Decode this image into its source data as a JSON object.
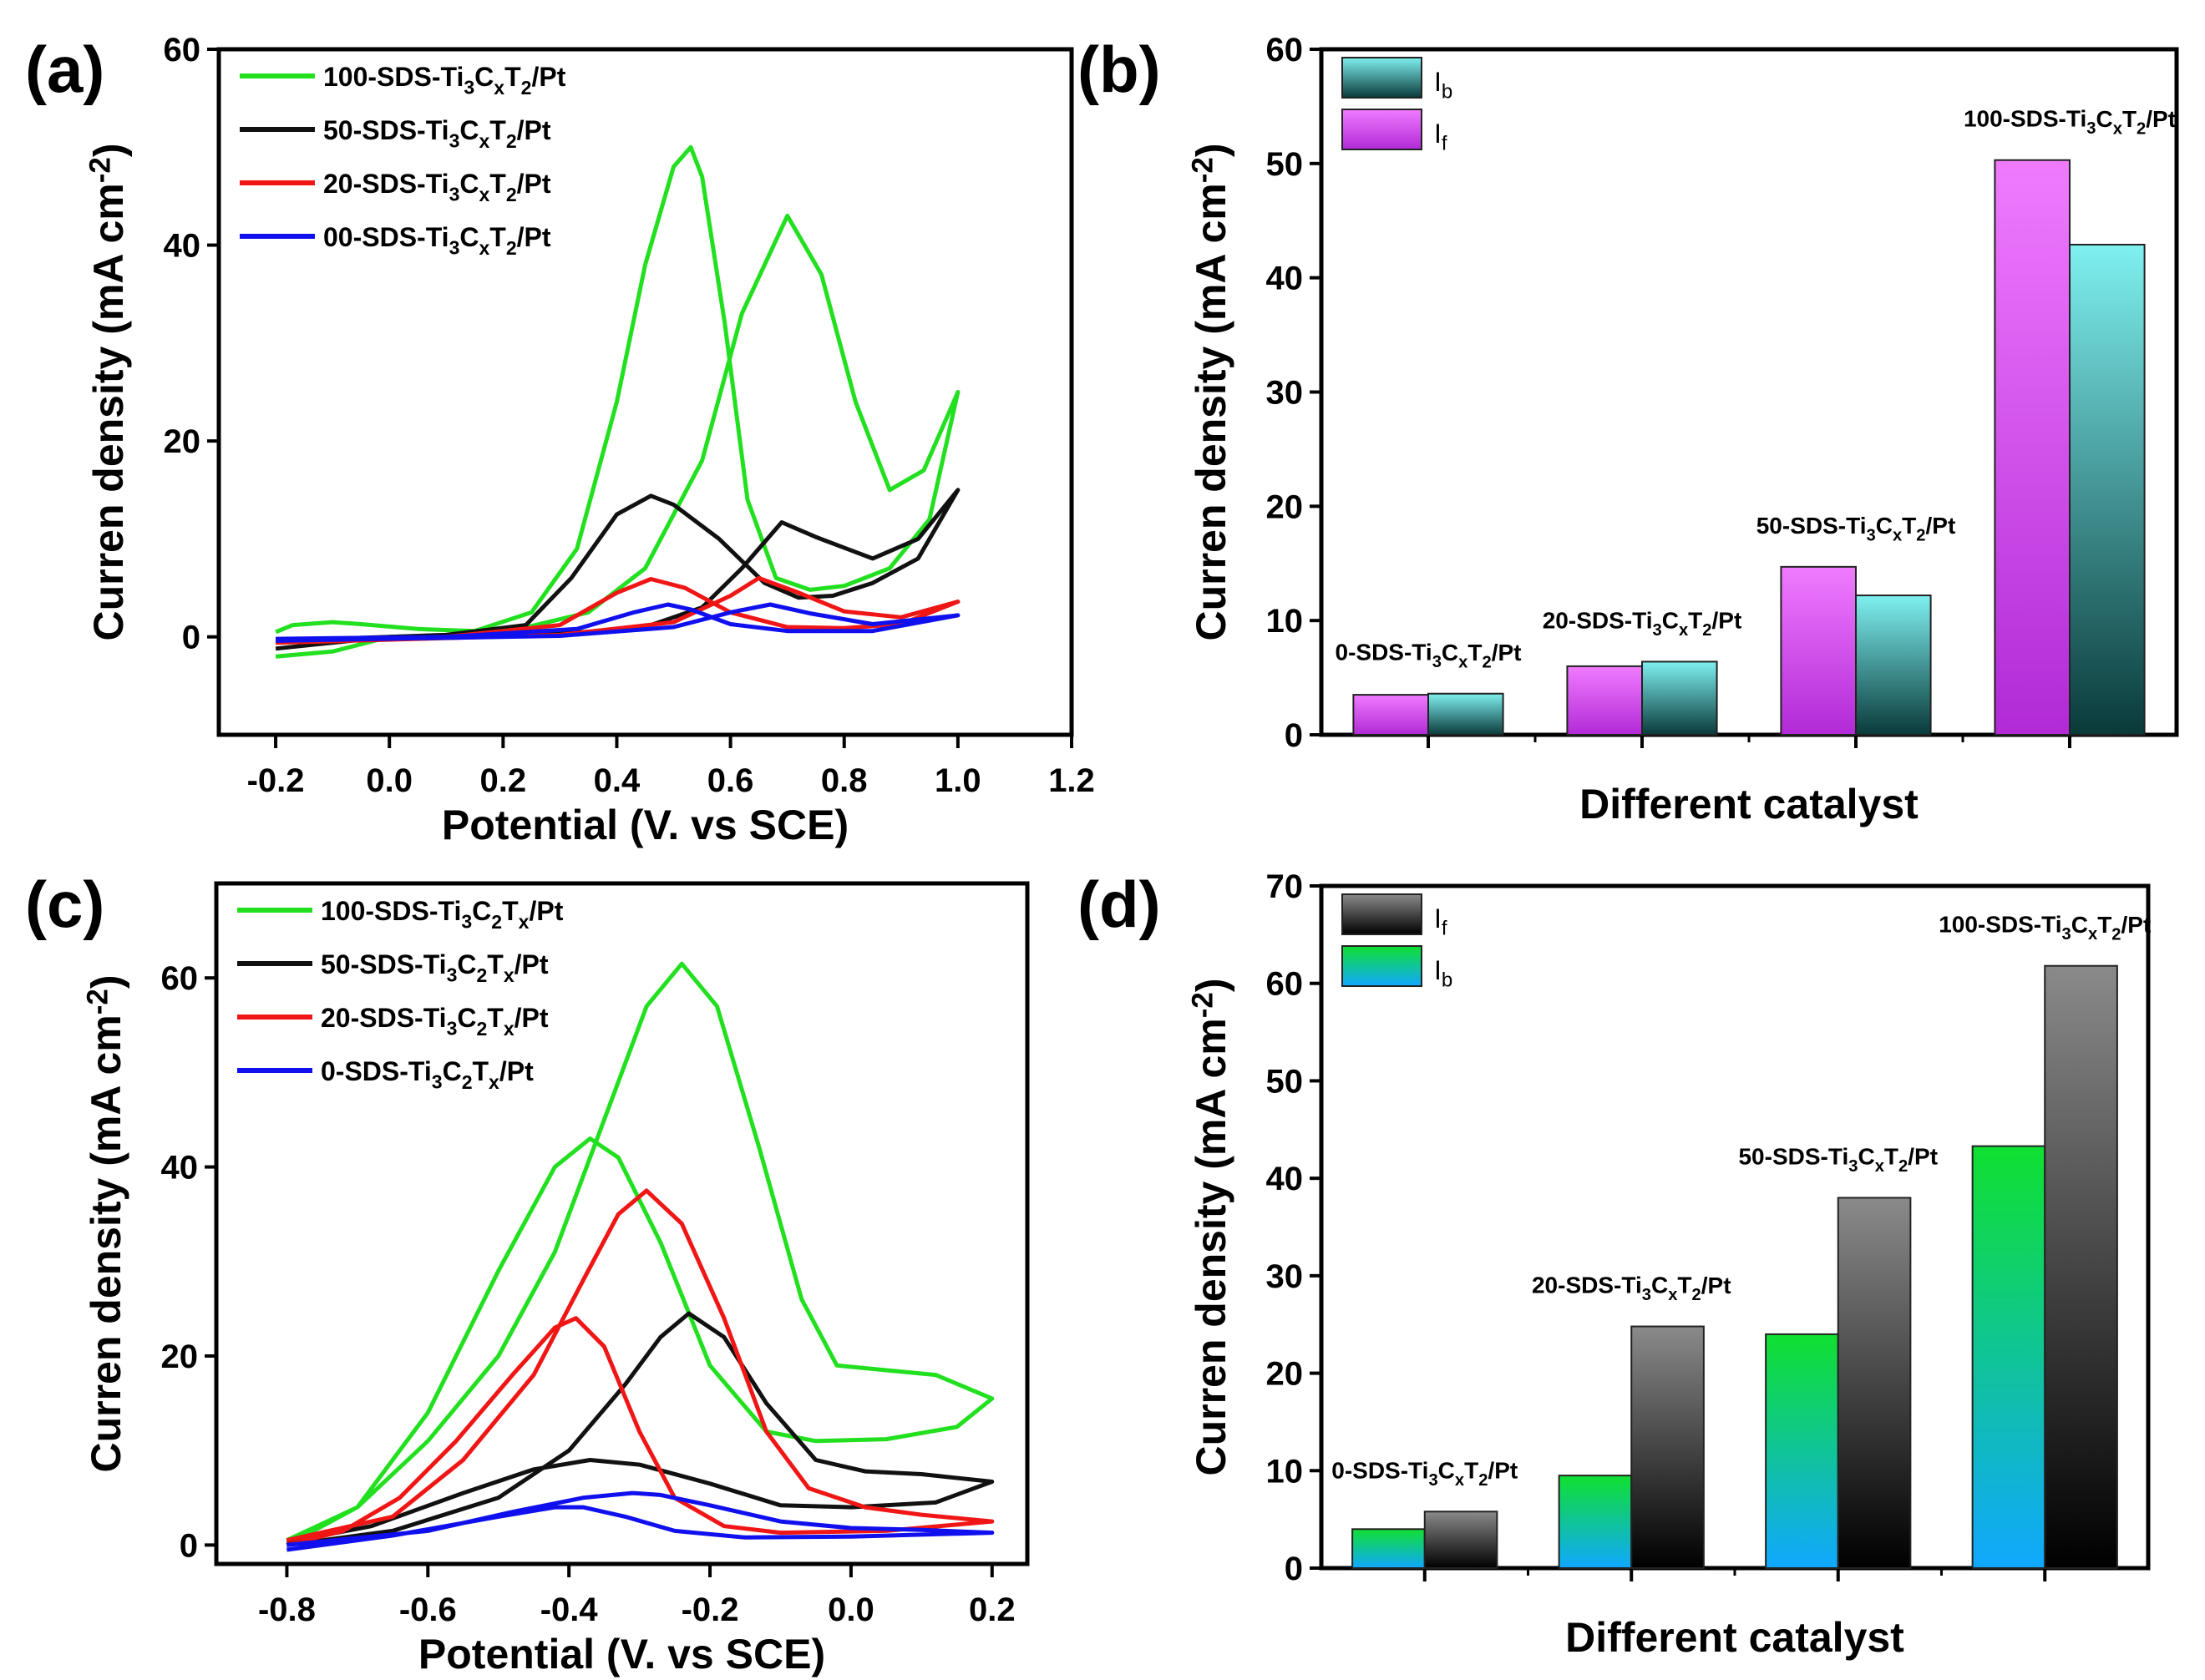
{
  "chart_data": [
    {
      "panel": "(a)",
      "type": "line",
      "xlabel": "Potential (V. vs SCE)",
      "ylabel": "Curren density (mA cm-2)",
      "xlim": [
        -0.3,
        1.2
      ],
      "ylim": [
        -10,
        60
      ],
      "xticks": [
        "-0.2",
        "0.0",
        "0.2",
        "0.4",
        "0.6",
        "0.8",
        "1.0",
        "1.2"
      ],
      "xtick_values": [
        -0.2,
        0,
        0.2,
        0.4,
        0.6,
        0.8,
        1.0,
        1.2
      ],
      "yticks": [
        "0",
        "20",
        "40",
        "60"
      ],
      "ytick_values": [
        0,
        20,
        40,
        60
      ],
      "legend_position": "top-left",
      "series": [
        {
          "name": "100-SDS-Ti3CxT2/Pt",
          "color": "#22e01f",
          "points": [
            [
              -0.2,
              -2
            ],
            [
              -0.1,
              -1.5
            ],
            [
              0,
              0
            ],
            [
              0.2,
              0.4
            ],
            [
              0.35,
              2.5
            ],
            [
              0.45,
              7
            ],
            [
              0.55,
              18
            ],
            [
              0.62,
              33
            ],
            [
              0.7,
              43
            ],
            [
              0.76,
              37
            ],
            [
              0.82,
              24
            ],
            [
              0.88,
              15
            ],
            [
              0.94,
              17
            ],
            [
              1.0,
              25
            ],
            [
              0.95,
              12
            ],
            [
              0.88,
              7
            ],
            [
              0.8,
              5.2
            ],
            [
              0.74,
              4.8
            ],
            [
              0.68,
              6
            ],
            [
              0.63,
              14
            ],
            [
              0.59,
              32
            ],
            [
              0.55,
              47
            ],
            [
              0.53,
              50
            ],
            [
              0.5,
              48
            ],
            [
              0.45,
              38
            ],
            [
              0.4,
              24
            ],
            [
              0.33,
              9
            ],
            [
              0.25,
              2.5
            ],
            [
              0.15,
              0.6
            ],
            [
              0.05,
              0.8
            ],
            [
              -0.05,
              1.3
            ],
            [
              -0.1,
              1.5
            ],
            [
              -0.17,
              1.2
            ],
            [
              -0.2,
              0.5
            ]
          ]
        },
        {
          "name": "50-SDS-Ti3CxT2/Pt",
          "color": "#111111",
          "points": [
            [
              -0.2,
              -1.2
            ],
            [
              0,
              0
            ],
            [
              0.3,
              0.3
            ],
            [
              0.45,
              1
            ],
            [
              0.55,
              3
            ],
            [
              0.62,
              7
            ],
            [
              0.69,
              11.7
            ],
            [
              0.75,
              10.2
            ],
            [
              0.85,
              8
            ],
            [
              0.93,
              10
            ],
            [
              1.0,
              15
            ],
            [
              0.93,
              8
            ],
            [
              0.85,
              5.5
            ],
            [
              0.78,
              4.2
            ],
            [
              0.72,
              4
            ],
            [
              0.66,
              5.5
            ],
            [
              0.58,
              10
            ],
            [
              0.5,
              13.5
            ],
            [
              0.46,
              14.4
            ],
            [
              0.4,
              12.5
            ],
            [
              0.32,
              6
            ],
            [
              0.24,
              1.2
            ],
            [
              0.1,
              0.2
            ],
            [
              0,
              0
            ],
            [
              -0.2,
              -0.4
            ]
          ]
        },
        {
          "name": "20-SDS-Ti3CxT2/Pt",
          "color": "#f01616",
          "points": [
            [
              -0.2,
              -0.6
            ],
            [
              0.3,
              0.2
            ],
            [
              0.5,
              1.5
            ],
            [
              0.6,
              4.2
            ],
            [
              0.65,
              6
            ],
            [
              0.72,
              4.5
            ],
            [
              0.8,
              2.6
            ],
            [
              0.9,
              2
            ],
            [
              1.0,
              3.6
            ],
            [
              0.9,
              1.3
            ],
            [
              0.8,
              0.9
            ],
            [
              0.7,
              1
            ],
            [
              0.6,
              2.5
            ],
            [
              0.52,
              5
            ],
            [
              0.46,
              5.9
            ],
            [
              0.4,
              4.5
            ],
            [
              0.3,
              1.2
            ],
            [
              0.1,
              0
            ],
            [
              -0.2,
              -0.3
            ]
          ]
        },
        {
          "name": "00-SDS-Ti3CxT2/Pt",
          "color": "#1010ee",
          "points": [
            [
              -0.2,
              -0.4
            ],
            [
              0.3,
              0.1
            ],
            [
              0.5,
              1
            ],
            [
              0.6,
              2.5
            ],
            [
              0.67,
              3.3
            ],
            [
              0.74,
              2.4
            ],
            [
              0.85,
              1.3
            ],
            [
              1.0,
              2.2
            ],
            [
              0.85,
              0.6
            ],
            [
              0.7,
              0.6
            ],
            [
              0.6,
              1.3
            ],
            [
              0.53,
              2.8
            ],
            [
              0.49,
              3.3
            ],
            [
              0.43,
              2.5
            ],
            [
              0.33,
              0.8
            ],
            [
              0.1,
              0
            ],
            [
              -0.2,
              -0.2
            ]
          ]
        }
      ]
    },
    {
      "panel": "(b)",
      "type": "bar",
      "xlabel": "Different catalyst",
      "ylabel": "Curren density (mA cm-2)",
      "ylim": [
        0,
        60
      ],
      "yticks": [
        "0",
        "10",
        "20",
        "30",
        "40",
        "50",
        "60"
      ],
      "ytick_values": [
        0,
        10,
        20,
        30,
        40,
        50,
        60
      ],
      "categories": [
        "0-SDS-Ti3CxT2/Pt",
        "20-SDS-Ti3CxT2/Pt",
        "50-SDS-Ti3CxT2/Pt",
        "100-SDS-Ti3CxT2/Pt"
      ],
      "legend_position": "top-left",
      "legend": [
        {
          "label": "Ib",
          "base": "I",
          "sub": "b",
          "series": 1
        },
        {
          "label": "If",
          "base": "I",
          "sub": "f",
          "series": 0
        }
      ],
      "series": [
        {
          "name": "If",
          "colors": [
            "#f07bff",
            "#b12ad6"
          ],
          "values": [
            3.5,
            6.0,
            14.7,
            50.3
          ]
        },
        {
          "name": "Ib",
          "colors": [
            "#7ff0f0",
            "#0a3a3a"
          ],
          "values": [
            3.6,
            6.4,
            12.2,
            42.9
          ]
        }
      ]
    },
    {
      "panel": "(c)",
      "type": "line",
      "xlabel": "Potential (V. vs SCE)",
      "ylabel": "Curren density (mA cm-2)",
      "xlim": [
        -0.9,
        0.25
      ],
      "ylim": [
        -2,
        70
      ],
      "xticks": [
        "-0.8",
        "-0.6",
        "-0.4",
        "-0.2",
        "0.0",
        "0.2"
      ],
      "xtick_values": [
        -0.8,
        -0.6,
        -0.4,
        -0.2,
        0,
        0.2
      ],
      "yticks": [
        "0",
        "20",
        "40",
        "60"
      ],
      "ytick_values": [
        0,
        20,
        40,
        60
      ],
      "legend_position": "top-left",
      "series": [
        {
          "name": "100-SDS-Ti3C2Tx/Pt",
          "color": "#22e01f",
          "points": [
            [
              -0.8,
              0
            ],
            [
              -0.7,
              4
            ],
            [
              -0.6,
              11
            ],
            [
              -0.5,
              20
            ],
            [
              -0.42,
              31
            ],
            [
              -0.35,
              45
            ],
            [
              -0.29,
              57
            ],
            [
              -0.24,
              61.5
            ],
            [
              -0.19,
              57
            ],
            [
              -0.13,
              42
            ],
            [
              -0.07,
              26
            ],
            [
              -0.02,
              19
            ],
            [
              0.05,
              18.5
            ],
            [
              0.12,
              18
            ],
            [
              0.2,
              15.5
            ],
            [
              0.15,
              12.5
            ],
            [
              0.05,
              11.2
            ],
            [
              -0.05,
              11
            ],
            [
              -0.12,
              12
            ],
            [
              -0.2,
              19
            ],
            [
              -0.27,
              32
            ],
            [
              -0.33,
              41
            ],
            [
              -0.37,
              43
            ],
            [
              -0.42,
              40
            ],
            [
              -0.5,
              29
            ],
            [
              -0.6,
              14
            ],
            [
              -0.7,
              4
            ],
            [
              -0.8,
              0.5
            ]
          ]
        },
        {
          "name": "50-SDS-Ti3C2Tx/Pt",
          "color": "#111111",
          "points": [
            [
              -0.8,
              0
            ],
            [
              -0.65,
              1.5
            ],
            [
              -0.5,
              5
            ],
            [
              -0.4,
              10
            ],
            [
              -0.32,
              17
            ],
            [
              -0.27,
              22
            ],
            [
              -0.23,
              24.5
            ],
            [
              -0.18,
              22
            ],
            [
              -0.12,
              15
            ],
            [
              -0.05,
              9
            ],
            [
              0.02,
              7.8
            ],
            [
              0.1,
              7.5
            ],
            [
              0.2,
              6.7
            ],
            [
              0.12,
              4.5
            ],
            [
              0,
              4
            ],
            [
              -0.1,
              4.2
            ],
            [
              -0.2,
              6.5
            ],
            [
              -0.3,
              8.5
            ],
            [
              -0.37,
              9
            ],
            [
              -0.45,
              8
            ],
            [
              -0.55,
              5.5
            ],
            [
              -0.68,
              2
            ],
            [
              -0.8,
              0.3
            ]
          ]
        },
        {
          "name": "20-SDS-Ti3C2Tx/Pt",
          "color": "#f01616",
          "points": [
            [
              -0.8,
              0
            ],
            [
              -0.72,
              1.5
            ],
            [
              -0.64,
              5
            ],
            [
              -0.56,
              11
            ],
            [
              -0.48,
              18
            ],
            [
              -0.42,
              23
            ],
            [
              -0.39,
              24
            ],
            [
              -0.35,
              21
            ],
            [
              -0.3,
              12
            ],
            [
              -0.25,
              5
            ],
            [
              -0.18,
              2
            ],
            [
              -0.1,
              1.3
            ],
            [
              0.05,
              1.5
            ],
            [
              0.2,
              2.5
            ],
            [
              0.1,
              3.2
            ],
            [
              0.02,
              4
            ],
            [
              -0.06,
              6
            ],
            [
              -0.12,
              12
            ],
            [
              -0.18,
              24
            ],
            [
              -0.24,
              34
            ],
            [
              -0.29,
              37.5
            ],
            [
              -0.33,
              35
            ],
            [
              -0.38,
              28
            ],
            [
              -0.45,
              18
            ],
            [
              -0.55,
              9
            ],
            [
              -0.65,
              3
            ],
            [
              -0.8,
              0.5
            ]
          ]
        },
        {
          "name": "0-SDS-Ti3C2Tx/Pt",
          "color": "#1010ee",
          "points": [
            [
              -0.8,
              -0.5
            ],
            [
              -0.65,
              1
            ],
            [
              -0.5,
              3
            ],
            [
              -0.42,
              4
            ],
            [
              -0.38,
              4
            ],
            [
              -0.32,
              3
            ],
            [
              -0.25,
              1.5
            ],
            [
              -0.15,
              0.8
            ],
            [
              0,
              0.9
            ],
            [
              0.2,
              1.3
            ],
            [
              0.1,
              1.6
            ],
            [
              0,
              1.8
            ],
            [
              -0.1,
              2.5
            ],
            [
              -0.2,
              4.2
            ],
            [
              -0.27,
              5.3
            ],
            [
              -0.31,
              5.5
            ],
            [
              -0.38,
              5
            ],
            [
              -0.48,
              3.5
            ],
            [
              -0.6,
              1.5
            ],
            [
              -0.8,
              0
            ]
          ]
        }
      ]
    },
    {
      "panel": "(d)",
      "type": "bar",
      "xlabel": "Different catalyst",
      "ylabel": "Curren density (mA cm-2)",
      "ylim": [
        0,
        70
      ],
      "yticks": [
        "0",
        "10",
        "20",
        "30",
        "40",
        "50",
        "60",
        "70"
      ],
      "ytick_values": [
        0,
        10,
        20,
        30,
        40,
        50,
        60,
        70
      ],
      "categories": [
        "0-SDS-Ti3CxT2/Pt",
        "20-SDS-Ti3CxT2/Pt",
        "50-SDS-Ti3CxT2/Pt",
        "100-SDS-Ti3CxT2/Pt"
      ],
      "legend_position": "top-left",
      "legend": [
        {
          "label": "If",
          "base": "I",
          "sub": "f",
          "series": 1
        },
        {
          "label": "Ib",
          "base": "I",
          "sub": "b",
          "series": 0
        }
      ],
      "series": [
        {
          "name": "Ib",
          "colors": [
            "#10e030",
            "#10a8ff"
          ],
          "values": [
            4.0,
            9.5,
            24.0,
            43.3
          ]
        },
        {
          "name": "If",
          "colors": [
            "#8a8a8a",
            "#000000"
          ],
          "values": [
            5.8,
            24.8,
            38.0,
            61.8
          ]
        }
      ]
    }
  ]
}
